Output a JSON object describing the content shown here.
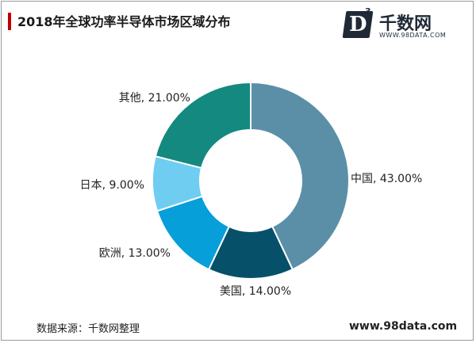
{
  "header": {
    "title": "2018年全球功率半导体市场区域分布"
  },
  "logo": {
    "mark": "D",
    "superscript": "3",
    "name": "千数网",
    "url": "WWW.98DATA.COM"
  },
  "chart_data": {
    "type": "pie",
    "donut": true,
    "title": "2018年全球功率半导体市场区域分布",
    "slices": [
      {
        "label": "中国, 43.00%",
        "category": "中国",
        "value": 43.0,
        "color": "#5b8fa8"
      },
      {
        "label": "美国, 14.00%",
        "category": "美国",
        "value": 14.0,
        "color": "#06506a"
      },
      {
        "label": "欧洲, 13.00%",
        "category": "欧洲",
        "value": 13.0,
        "color": "#069fd9"
      },
      {
        "label": "日本, 9.00%",
        "category": "日本",
        "value": 9.0,
        "color": "#6fcdf2"
      },
      {
        "label": "其他, 21.00%",
        "category": "其他",
        "value": 21.0,
        "color": "#14897f"
      }
    ]
  },
  "footer": {
    "source": "数据来源：千数网整理",
    "site": "www.98data.com"
  }
}
